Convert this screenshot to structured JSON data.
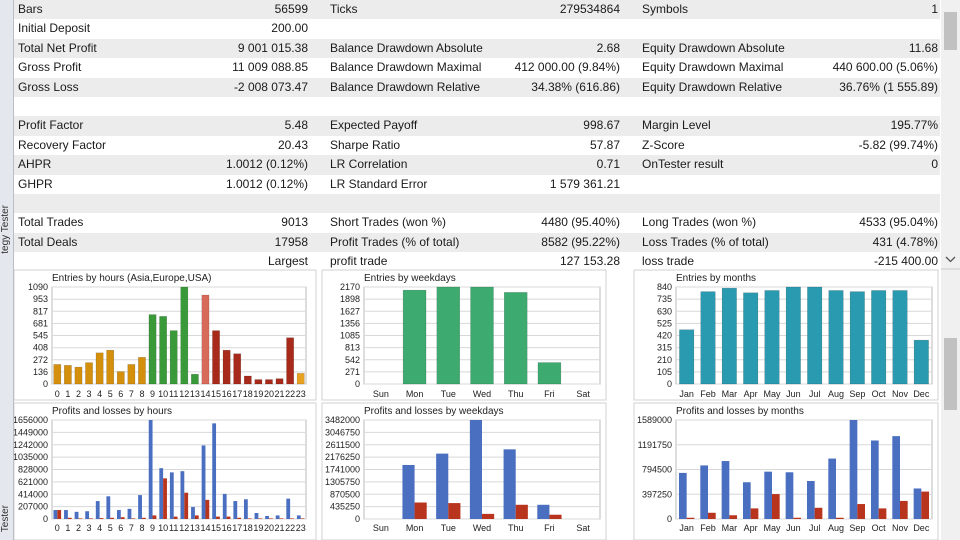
{
  "report": {
    "rows": [
      [
        "Bars",
        "56599",
        "Ticks",
        "279534864",
        "Symbols",
        "1"
      ],
      [
        "Initial Deposit",
        "200.00",
        null,
        null,
        null,
        null
      ],
      [
        "Total Net Profit",
        "9 001 015.38",
        "Balance Drawdown Absolute",
        "2.68",
        "Equity Drawdown Absolute",
        "11.68"
      ],
      [
        "Gross Profit",
        "11 009 088.85",
        "Balance Drawdown Maximal",
        "412 000.00 (9.84%)",
        "Equity Drawdown Maximal",
        "440 600.00 (5.06%)"
      ],
      [
        "Gross Loss",
        "-2 008 073.47",
        "Balance Drawdown Relative",
        "34.38% (616.86)",
        "Equity Drawdown Relative",
        "36.76% (1 555.89)"
      ],
      null,
      [
        "Profit Factor",
        "5.48",
        "Expected Payoff",
        "998.67",
        "Margin Level",
        "195.77%"
      ],
      [
        "Recovery Factor",
        "20.43",
        "Sharpe Ratio",
        "57.87",
        "Z-Score",
        "-5.82 (99.74%)"
      ],
      [
        "AHPR",
        "1.0012 (0.12%)",
        "LR Correlation",
        "0.71",
        "OnTester result",
        "0"
      ],
      [
        "GHPR",
        "1.0012 (0.12%)",
        "LR Standard Error",
        "1 579 361.21",
        null,
        null
      ],
      null,
      [
        "Total Trades",
        "9013",
        "Short Trades (won %)",
        "4480 (95.40%)",
        "Long Trades (won %)",
        "4533 (95.04%)"
      ],
      [
        "Total Deals",
        "17958",
        "Profit Trades (% of total)",
        "8582 (95.22%)",
        "Loss Trades (% of total)",
        "431 (4.78%)"
      ],
      [
        null,
        "Largest",
        "profit trade",
        "127 153.28",
        "loss trade",
        "-215 400.00"
      ]
    ]
  },
  "charts": [
    {
      "type": "bar",
      "title": "Entries by hours (Asia,Europe,USA)",
      "categories": [
        "0",
        "1",
        "2",
        "3",
        "4",
        "5",
        "6",
        "7",
        "8",
        "9",
        "10",
        "11",
        "12",
        "13",
        "14",
        "15",
        "16",
        "17",
        "18",
        "19",
        "20",
        "21",
        "22",
        "23"
      ],
      "values": [
        220,
        210,
        190,
        240,
        350,
        380,
        140,
        220,
        300,
        780,
        760,
        600,
        1090,
        110,
        1000,
        600,
        380,
        340,
        90,
        50,
        50,
        60,
        520,
        120
      ],
      "colors": [
        "#d4900c",
        "#d4900c",
        "#d4900c",
        "#d4900c",
        "#d4900c",
        "#d4900c",
        "#d4900c",
        "#d4900c",
        "#d4900c",
        "#3a9a3a",
        "#3a9a3a",
        "#3a9a3a",
        "#3a9a3a",
        "#3a9a3a",
        "#d86a5a",
        "#a82a1a",
        "#a82a1a",
        "#a82a1a",
        "#a82a1a",
        "#a82a1a",
        "#a82a1a",
        "#a82a1a",
        "#a82a1a",
        "#e8a020"
      ],
      "ylim": [
        0,
        1090
      ],
      "yticks": [
        0,
        136,
        272,
        408,
        545,
        681,
        817,
        953,
        1090
      ],
      "grid": true
    },
    {
      "type": "bar",
      "title": "Entries by weekdays",
      "categories": [
        "Sun",
        "Mon",
        "Tue",
        "Wed",
        "Thu",
        "Fri",
        "Sat"
      ],
      "values": [
        0,
        2100,
        2170,
        2170,
        2050,
        480,
        0
      ],
      "color": "#3daa70",
      "ylim": [
        0,
        2170
      ],
      "yticks": [
        0,
        271,
        542,
        813,
        1085,
        1356,
        1627,
        1898,
        2170
      ],
      "grid": true
    },
    {
      "type": "bar",
      "title": "Entries by months",
      "categories": [
        "Jan",
        "Feb",
        "Mar",
        "Apr",
        "May",
        "Jun",
        "Jul",
        "Aug",
        "Sep",
        "Oct",
        "Nov",
        "Dec"
      ],
      "values": [
        470,
        800,
        830,
        790,
        810,
        840,
        840,
        810,
        800,
        810,
        810,
        380
      ],
      "color": "#2a9ab0",
      "ylim": [
        0,
        840
      ],
      "yticks": [
        0,
        105,
        210,
        315,
        420,
        525,
        630,
        735,
        840
      ],
      "grid": true
    },
    {
      "type": "grouped-bar",
      "title": "Profits and losses by hours",
      "categories": [
        "0",
        "1",
        "2",
        "3",
        "4",
        "5",
        "6",
        "7",
        "8",
        "9",
        "10",
        "11",
        "12",
        "13",
        "14",
        "15",
        "16",
        "17",
        "18",
        "19",
        "20",
        "21",
        "22",
        "23"
      ],
      "series": [
        {
          "color": "#4a6fc0",
          "values": [
            150000,
            150000,
            120000,
            130000,
            300000,
            380000,
            150000,
            170000,
            400000,
            1656000,
            850000,
            780000,
            800000,
            200000,
            1230000,
            1600000,
            420000,
            300000,
            330000,
            100000,
            50000,
            60000,
            340000,
            60000
          ]
        },
        {
          "color": "#b8341c",
          "values": [
            150000,
            20000,
            10000,
            10000,
            15000,
            20000,
            30000,
            10000,
            20000,
            60000,
            680000,
            40000,
            440000,
            60000,
            320000,
            40000,
            40000,
            20000,
            10000,
            10000,
            10000,
            10000,
            10000,
            10000
          ]
        }
      ],
      "ylim": [
        0,
        1656000
      ],
      "yticks": [
        0,
        207000,
        414000,
        621000,
        828000,
        1035000,
        1242000,
        1449000,
        1656000
      ],
      "grid": true
    },
    {
      "type": "grouped-bar",
      "title": "Profits and losses by weekdays",
      "categories": [
        "Sun",
        "Mon",
        "Tue",
        "Wed",
        "Thu",
        "Fri",
        "Sat"
      ],
      "series": [
        {
          "color": "#4a6fc0",
          "values": [
            0,
            1900000,
            2300000,
            3482000,
            2450000,
            500000,
            0
          ]
        },
        {
          "color": "#b8341c",
          "values": [
            0,
            580000,
            560000,
            180000,
            500000,
            150000,
            0
          ]
        }
      ],
      "ylim": [
        0,
        3482000
      ],
      "yticks": [
        0,
        435250,
        870500,
        1305750,
        1741000,
        2176250,
        2611500,
        3046750,
        3482000
      ],
      "grid": true
    },
    {
      "type": "grouped-bar",
      "title": "Profits and losses by months",
      "categories": [
        "Jan",
        "Feb",
        "Mar",
        "Apr",
        "May",
        "Jun",
        "Jul",
        "Aug",
        "Sep",
        "Oct",
        "Nov",
        "Dec"
      ],
      "series": [
        {
          "color": "#4a6fc0",
          "values": [
            740000,
            860000,
            930000,
            590000,
            760000,
            750000,
            610000,
            970000,
            1589000,
            1260000,
            1330000,
            490000
          ]
        },
        {
          "color": "#b8341c",
          "values": [
            20000,
            100000,
            60000,
            170000,
            400000,
            20000,
            180000,
            20000,
            240000,
            170000,
            290000,
            440000
          ]
        }
      ],
      "ylim": [
        0,
        1589000
      ],
      "yticks": [
        0,
        397250,
        794500,
        1191750,
        1589000
      ],
      "grid": true
    }
  ],
  "sidebar": {
    "top_label": "tegy Tester",
    "bottom_label": "Tester"
  }
}
